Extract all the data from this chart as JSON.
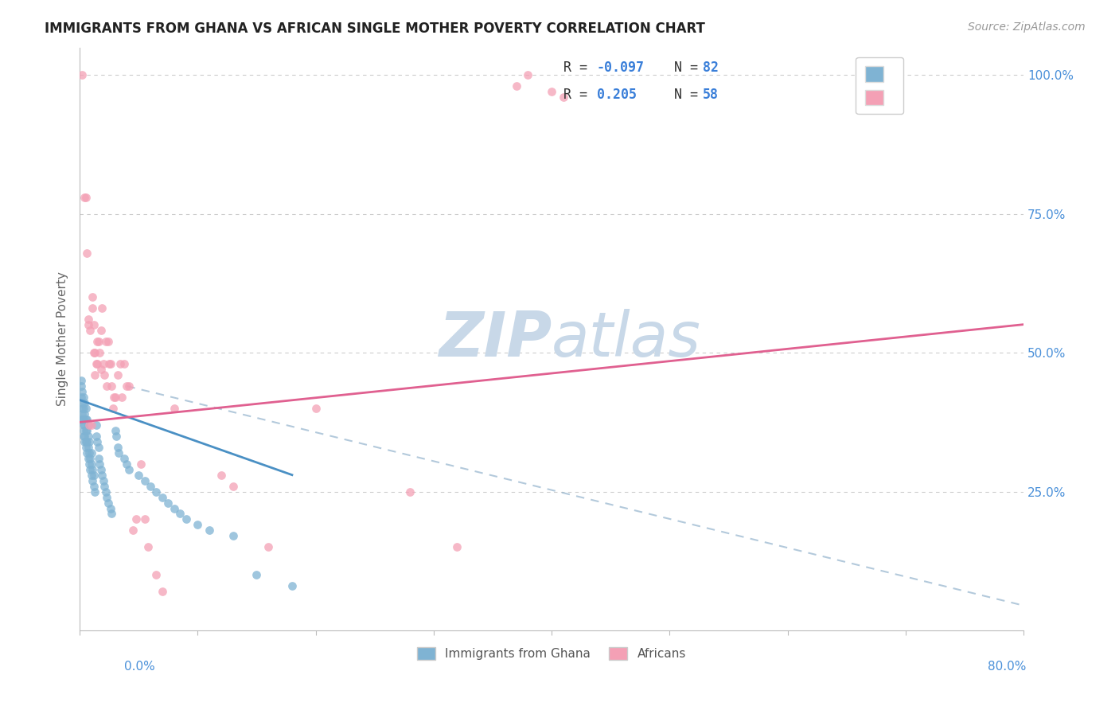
{
  "title": "IMMIGRANTS FROM GHANA VS AFRICAN SINGLE MOTHER POVERTY CORRELATION CHART",
  "source": "Source: ZipAtlas.com",
  "ylabel": "Single Mother Poverty",
  "right_yticks": [
    "100.0%",
    "75.0%",
    "50.0%",
    "25.0%"
  ],
  "right_ytick_vals": [
    1.0,
    0.75,
    0.5,
    0.25
  ],
  "watermark_zip": "ZIP",
  "watermark_atlas": "atlas",
  "watermark_color": "#c8d8e8",
  "blue_scatter": {
    "x": [
      0.001,
      0.001,
      0.001,
      0.001,
      0.002,
      0.002,
      0.002,
      0.002,
      0.002,
      0.003,
      0.003,
      0.003,
      0.003,
      0.003,
      0.003,
      0.004,
      0.004,
      0.004,
      0.004,
      0.004,
      0.005,
      0.005,
      0.005,
      0.005,
      0.005,
      0.006,
      0.006,
      0.006,
      0.006,
      0.007,
      0.007,
      0.007,
      0.007,
      0.008,
      0.008,
      0.008,
      0.009,
      0.009,
      0.01,
      0.01,
      0.01,
      0.011,
      0.011,
      0.012,
      0.012,
      0.013,
      0.014,
      0.014,
      0.015,
      0.016,
      0.016,
      0.017,
      0.018,
      0.019,
      0.02,
      0.021,
      0.022,
      0.023,
      0.024,
      0.026,
      0.027,
      0.03,
      0.031,
      0.032,
      0.033,
      0.038,
      0.04,
      0.042,
      0.05,
      0.055,
      0.06,
      0.065,
      0.07,
      0.075,
      0.08,
      0.085,
      0.09,
      0.1,
      0.11,
      0.13,
      0.15,
      0.18
    ],
    "y": [
      0.38,
      0.42,
      0.44,
      0.45,
      0.38,
      0.39,
      0.4,
      0.41,
      0.43,
      0.35,
      0.36,
      0.37,
      0.38,
      0.4,
      0.42,
      0.34,
      0.35,
      0.37,
      0.39,
      0.41,
      0.33,
      0.34,
      0.36,
      0.38,
      0.4,
      0.32,
      0.34,
      0.36,
      0.38,
      0.31,
      0.33,
      0.35,
      0.37,
      0.3,
      0.32,
      0.34,
      0.29,
      0.31,
      0.28,
      0.3,
      0.32,
      0.27,
      0.29,
      0.26,
      0.28,
      0.25,
      0.35,
      0.37,
      0.34,
      0.33,
      0.31,
      0.3,
      0.29,
      0.28,
      0.27,
      0.26,
      0.25,
      0.24,
      0.23,
      0.22,
      0.21,
      0.36,
      0.35,
      0.33,
      0.32,
      0.31,
      0.3,
      0.29,
      0.28,
      0.27,
      0.26,
      0.25,
      0.24,
      0.23,
      0.22,
      0.21,
      0.2,
      0.19,
      0.18,
      0.17,
      0.1,
      0.08
    ]
  },
  "pink_scatter": {
    "x": [
      0.002,
      0.004,
      0.005,
      0.006,
      0.007,
      0.007,
      0.008,
      0.009,
      0.01,
      0.011,
      0.011,
      0.012,
      0.012,
      0.013,
      0.013,
      0.014,
      0.015,
      0.015,
      0.016,
      0.017,
      0.018,
      0.018,
      0.019,
      0.02,
      0.021,
      0.022,
      0.023,
      0.024,
      0.025,
      0.026,
      0.027,
      0.028,
      0.029,
      0.03,
      0.032,
      0.034,
      0.036,
      0.038,
      0.04,
      0.042,
      0.045,
      0.048,
      0.052,
      0.055,
      0.058,
      0.065,
      0.07,
      0.08,
      0.12,
      0.13,
      0.16,
      0.2,
      0.28,
      0.32,
      0.37,
      0.38,
      0.4,
      0.41
    ],
    "y": [
      1.0,
      0.78,
      0.78,
      0.68,
      0.55,
      0.56,
      0.37,
      0.54,
      0.37,
      0.58,
      0.6,
      0.5,
      0.55,
      0.46,
      0.5,
      0.48,
      0.52,
      0.48,
      0.52,
      0.5,
      0.47,
      0.54,
      0.58,
      0.48,
      0.46,
      0.52,
      0.44,
      0.52,
      0.48,
      0.48,
      0.44,
      0.4,
      0.42,
      0.42,
      0.46,
      0.48,
      0.42,
      0.48,
      0.44,
      0.44,
      0.18,
      0.2,
      0.3,
      0.2,
      0.15,
      0.1,
      0.07,
      0.4,
      0.28,
      0.26,
      0.15,
      0.4,
      0.25,
      0.15,
      0.98,
      1.0,
      0.97,
      0.96
    ]
  },
  "blue_line_x0": 0.0,
  "blue_line_x1": 0.18,
  "blue_line_y0": 0.415,
  "blue_line_slope": -0.75,
  "pink_line_x0": 0.0,
  "pink_line_x1": 0.8,
  "pink_line_y0": 0.375,
  "pink_line_slope": 0.22,
  "dash_line_x0": 0.04,
  "dash_line_x1": 0.8,
  "dash_line_y0": 0.44,
  "dash_line_slope": -0.52,
  "blue_color": "#7fb3d3",
  "pink_color": "#f4a0b5",
  "blue_line_color": "#4a90c4",
  "pink_line_color": "#e06090",
  "dash_line_color": "#9ab8d0",
  "xlim": [
    0.0,
    0.8
  ],
  "ylim": [
    0.0,
    1.05
  ],
  "leg_r1": "R = ",
  "leg_r1_val": "-0.097",
  "leg_n1": "  N = ",
  "leg_n1_val": "82",
  "leg_r2": "R =  ",
  "leg_r2_val": "0.205",
  "leg_n2": "  N = ",
  "leg_n2_val": "58",
  "legend_text_color": "#333333",
  "legend_val_color": "#3a7fd9",
  "bottom_label1": "Immigrants from Ghana",
  "bottom_label2": "Africans"
}
